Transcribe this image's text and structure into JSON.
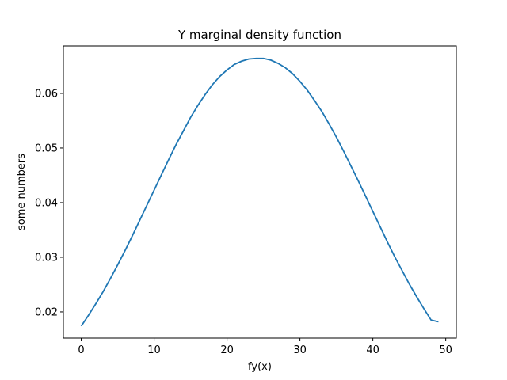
{
  "chart_data": {
    "type": "line",
    "title": "Y marginal density function",
    "xlabel": "fy(x)",
    "ylabel": "some numbers",
    "xlim": [
      -2.45,
      51.45
    ],
    "ylim": [
      0.01521,
      0.06869
    ],
    "xticks": [
      0,
      10,
      20,
      30,
      40,
      50
    ],
    "yticks": [
      0.02,
      0.03,
      0.04,
      0.05,
      0.06
    ],
    "ytick_labels": [
      "0.02",
      "0.03",
      "0.04",
      "0.05",
      "0.06"
    ],
    "grid": false,
    "series": [
      {
        "color": "#1f77b4",
        "x": [
          0,
          1,
          2,
          3,
          4,
          5,
          6,
          7,
          8,
          9,
          10,
          11,
          12,
          13,
          14,
          15,
          16,
          17,
          18,
          19,
          20,
          21,
          22,
          23,
          24,
          25,
          26,
          27,
          28,
          29,
          30,
          31,
          32,
          33,
          34,
          35,
          36,
          37,
          38,
          39,
          40,
          41,
          42,
          43,
          44,
          45,
          46,
          47,
          48,
          49
        ],
        "y": [
          0.0174,
          0.0194,
          0.0215,
          0.0237,
          0.0261,
          0.0286,
          0.0312,
          0.0339,
          0.0367,
          0.0395,
          0.0423,
          0.0451,
          0.0479,
          0.0506,
          0.0531,
          0.0556,
          0.0578,
          0.0598,
          0.0616,
          0.0631,
          0.0643,
          0.0653,
          0.0659,
          0.0663,
          0.0664,
          0.0664,
          0.0661,
          0.0655,
          0.0647,
          0.0636,
          0.0622,
          0.0606,
          0.0587,
          0.0567,
          0.0544,
          0.052,
          0.0494,
          0.0467,
          0.044,
          0.0412,
          0.0384,
          0.0356,
          0.0328,
          0.0301,
          0.0276,
          0.0251,
          0.0228,
          0.0206,
          0.0185,
          0.0182
        ]
      }
    ]
  }
}
